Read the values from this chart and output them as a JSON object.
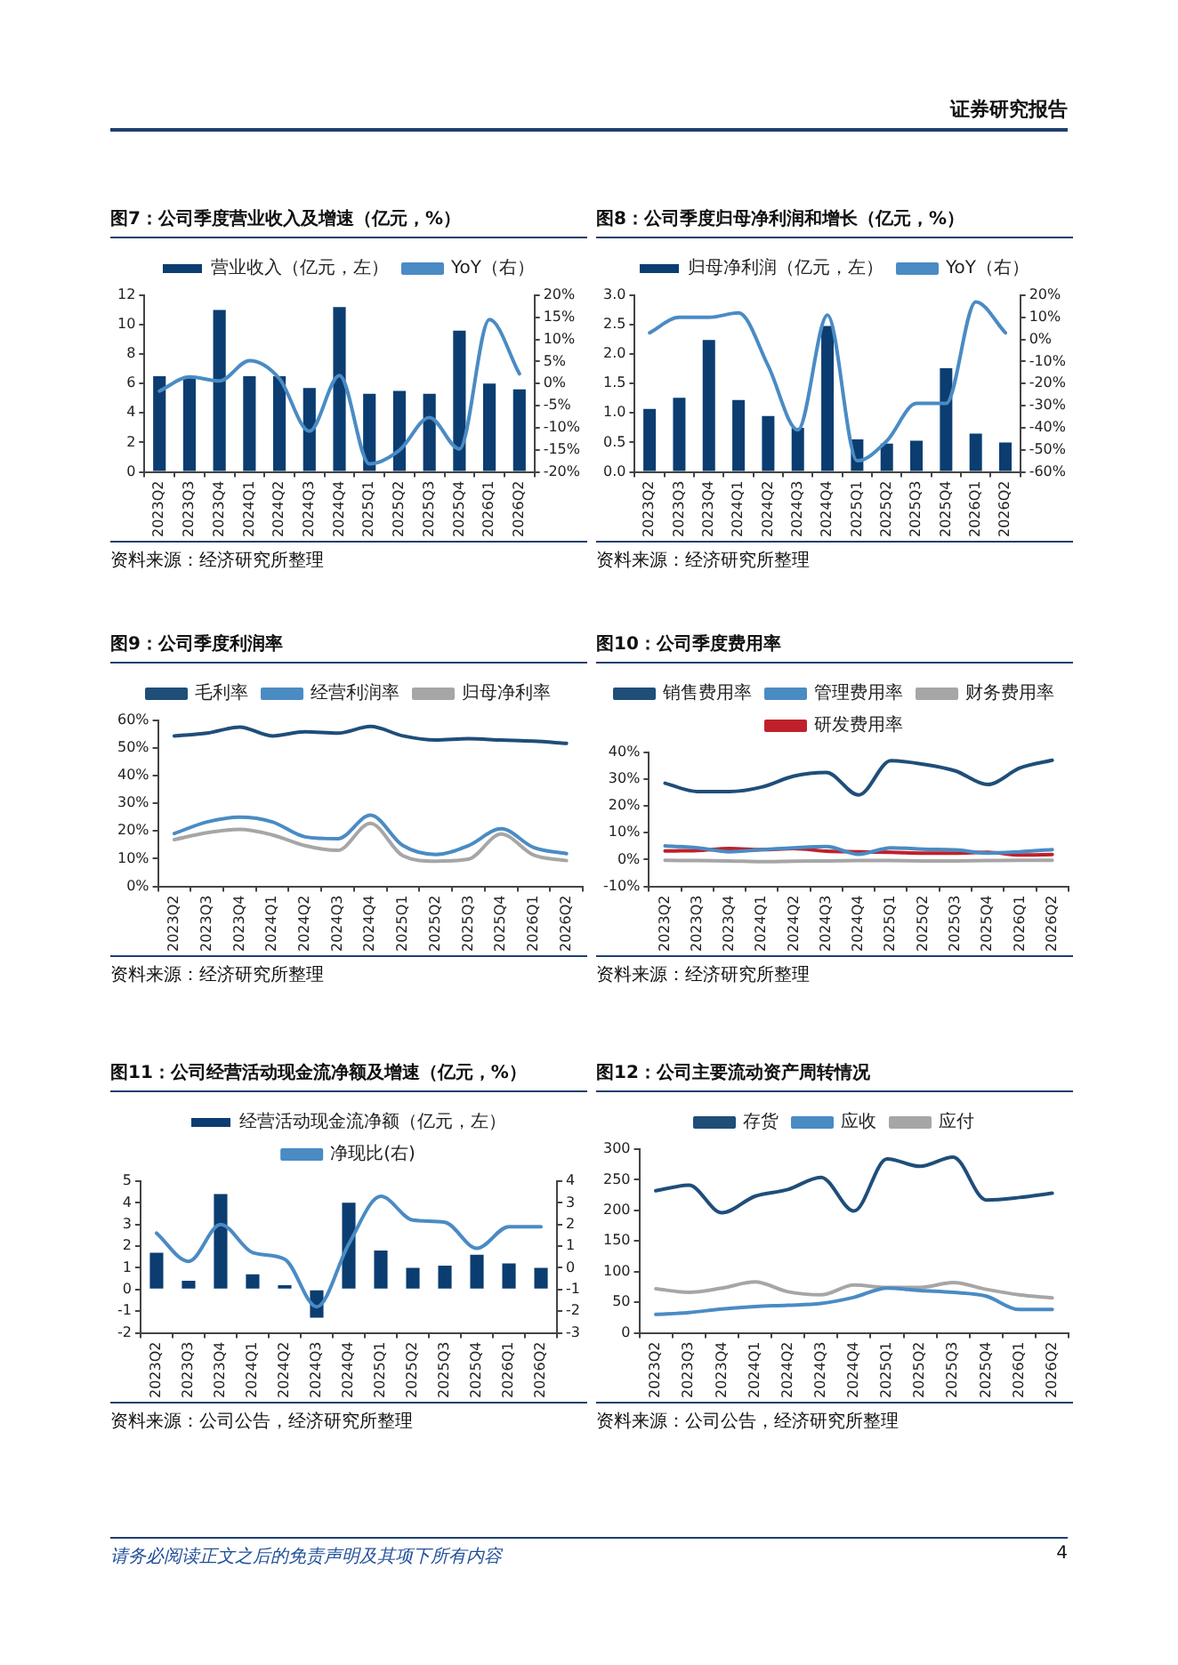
{
  "chart_data": [
    {
      "type": "bar",
      "title": "图7：公司季度营业收入及增速（亿元，%）",
      "categories": [
        "2023Q2",
        "2023Q3",
        "2023Q4",
        "2024Q1",
        "2024Q2",
        "2024Q3",
        "2024Q4",
        "2025Q1",
        "2025Q2",
        "2025Q3",
        "2025Q4",
        "2026Q1",
        "2026Q2"
      ],
      "series": [
        {
          "name": "营业收入（亿元，左）",
          "color": "#0b3d71",
          "values": [
            6.5,
            6.5,
            11.0,
            6.5,
            6.5,
            5.7,
            11.2,
            5.3,
            5.5,
            5.3,
            9.6,
            6.0,
            5.6
          ]
        },
        {
          "name": "YoY（右）",
          "type": "line",
          "axis": "y2",
          "color": "#4a8bc4",
          "values": [
            -1.7,
            1.5,
            0.6,
            5.2,
            1.1,
            -10.8,
            1.8,
            -18.2,
            -15.1,
            -7.7,
            -14.8,
            14.5,
            2.2
          ]
        }
      ],
      "ylim": [
        0,
        12
      ],
      "yticks": [
        0,
        2,
        4,
        6,
        8,
        10,
        12
      ],
      "y2lim": [
        -20,
        20
      ],
      "y2ticks": [
        {
          "value": -20,
          "label": "-20%"
        },
        {
          "value": -15,
          "label": "-15%"
        },
        {
          "value": -10,
          "label": "-10%"
        },
        {
          "value": -5,
          "label": "-5%"
        },
        {
          "value": 0,
          "label": "0%"
        },
        {
          "value": 5,
          "label": "5%"
        },
        {
          "value": 10,
          "label": "10%"
        },
        {
          "value": 15,
          "label": "15%"
        },
        {
          "value": 20,
          "label": "20%"
        }
      ],
      "grid": false,
      "legend": "top",
      "marker": "none",
      "line_style": "solid",
      "annotations": [
        "资料来源：经济研究所整理",
        "证券研究报告"
      ]
    },
    {
      "type": "bar",
      "title": "图8：公司季度归母净利润和增长（亿元，%）",
      "categories": [
        "2023Q2",
        "2023Q3",
        "2023Q4",
        "2024Q1",
        "2024Q2",
        "2024Q3",
        "2024Q4",
        "2025Q1",
        "2025Q2",
        "2025Q3",
        "2025Q4",
        "2026Q1",
        "2026Q2"
      ],
      "series": [
        {
          "name": "归母净利润（亿元，左）",
          "color": "#0b3d71",
          "values": [
            1.07,
            1.26,
            2.24,
            1.22,
            0.95,
            0.75,
            2.48,
            0.55,
            0.48,
            0.53,
            1.76,
            0.65,
            0.5
          ]
        },
        {
          "name": "YoY（右）",
          "type": "line",
          "axis": "y2",
          "color": "#4a8bc4",
          "values": [
            3,
            10,
            10,
            12,
            -12,
            -41,
            11,
            -55,
            -46,
            -29,
            -29,
            17,
            3
          ]
        }
      ],
      "ylim": [
        0,
        3
      ],
      "yticks": [
        {
          "value": 0,
          "label": "0.0"
        },
        {
          "value": 0.5,
          "label": "0.5"
        },
        {
          "value": 1,
          "label": "1.0"
        },
        {
          "value": 1.5,
          "label": "1.5"
        },
        {
          "value": 2,
          "label": "2.0"
        },
        {
          "value": 2.5,
          "label": "2.5"
        },
        {
          "value": 3,
          "label": "3.0"
        }
      ],
      "y2lim": [
        -60,
        20
      ],
      "y2ticks": [
        {
          "value": -60,
          "label": "-60%"
        },
        {
          "value": -50,
          "label": "-50%"
        },
        {
          "value": -40,
          "label": "-40%"
        },
        {
          "value": -30,
          "label": "-30%"
        },
        {
          "value": -20,
          "label": "-20%"
        },
        {
          "value": -10,
          "label": "-10%"
        },
        {
          "value": 0,
          "label": "0%"
        },
        {
          "value": 10,
          "label": "10%"
        },
        {
          "value": 20,
          "label": "20%"
        }
      ],
      "grid": false,
      "legend": "top",
      "marker": "none",
      "line_style": "solid",
      "annotations": [
        "资料来源：经济研究所整理"
      ]
    },
    {
      "type": "line",
      "title": "图9：公司季度利润率",
      "categories": [
        "2023Q2",
        "2023Q3",
        "2023Q4",
        "2024Q1",
        "2024Q2",
        "2024Q3",
        "2024Q4",
        "2025Q1",
        "2025Q2",
        "2025Q3",
        "2025Q4",
        "2026Q1",
        "2026Q2"
      ],
      "series": [
        {
          "name": "毛利率",
          "color": "#1f4e79",
          "values": [
            54.4,
            55.4,
            57.6,
            54.4,
            55.9,
            55.4,
            57.8,
            54.4,
            52.9,
            53.4,
            52.9,
            52.5,
            51.7
          ]
        },
        {
          "name": "经营利润率",
          "color": "#4a8bc4",
          "values": [
            19.1,
            23.3,
            25.0,
            23.3,
            17.9,
            17.2,
            25.7,
            14.7,
            11.5,
            14.7,
            20.8,
            14.0,
            11.8
          ]
        },
        {
          "name": "归母净利率",
          "color": "#a6a6a6",
          "values": [
            16.9,
            19.4,
            20.6,
            18.6,
            14.7,
            13.0,
            22.8,
            11.0,
            9.1,
            9.8,
            18.9,
            11.3,
            9.3
          ]
        }
      ],
      "ylim": [
        0,
        60
      ],
      "yticks": [
        {
          "value": 0,
          "label": "0%"
        },
        {
          "value": 10,
          "label": "10%"
        },
        {
          "value": 20,
          "label": "20%"
        },
        {
          "value": 30,
          "label": "30%"
        },
        {
          "value": 40,
          "label": "40%"
        },
        {
          "value": 50,
          "label": "50%"
        },
        {
          "value": 60,
          "label": "60%"
        }
      ],
      "grid": false,
      "legend": "top",
      "marker": "none",
      "line_style": "solid",
      "annotations": [
        "资料来源：经济研究所整理"
      ]
    },
    {
      "type": "line",
      "title": "图10：公司季度费用率",
      "categories": [
        "2023Q2",
        "2023Q3",
        "2023Q4",
        "2024Q1",
        "2024Q2",
        "2024Q3",
        "2024Q4",
        "2025Q1",
        "2025Q2",
        "2025Q3",
        "2025Q4",
        "2026Q1",
        "2026Q2"
      ],
      "series": [
        {
          "name": "销售费用率",
          "color": "#1f4e79",
          "values": [
            28.5,
            25.4,
            25.4,
            27.1,
            31.2,
            32.5,
            24.1,
            36.9,
            35.6,
            33.1,
            28.0,
            34.2,
            37.1
          ]
        },
        {
          "name": "管理费用率",
          "color": "#4a8bc4",
          "values": [
            5.1,
            4.4,
            2.9,
            3.7,
            4.4,
            4.9,
            2.0,
            4.4,
            3.9,
            3.6,
            2.4,
            2.9,
            3.7
          ]
        },
        {
          "name": "财务费用率",
          "color": "#a6a6a6",
          "values": [
            -0.3,
            -0.4,
            -0.5,
            -0.8,
            -0.6,
            -0.5,
            -0.4,
            -0.4,
            -0.5,
            -0.5,
            -0.4,
            -0.3,
            -0.3
          ]
        },
        {
          "name": "研发费用率",
          "color": "#c0202a",
          "values": [
            3.2,
            3.4,
            4.1,
            3.7,
            4.1,
            3.1,
            2.9,
            2.7,
            2.4,
            2.4,
            2.7,
            1.7,
            1.9
          ]
        }
      ],
      "ylim": [
        -10,
        40
      ],
      "yticks": [
        {
          "value": -10,
          "label": "-10%"
        },
        {
          "value": 0,
          "label": "0%"
        },
        {
          "value": 10,
          "label": "10%"
        },
        {
          "value": 20,
          "label": "20%"
        },
        {
          "value": 30,
          "label": "30%"
        },
        {
          "value": 40,
          "label": "40%"
        }
      ],
      "grid": false,
      "legend": "top",
      "marker": "none",
      "line_style": "solid",
      "annotations": [
        "资料来源：经济研究所整理"
      ]
    },
    {
      "type": "bar",
      "title": "图11：公司经营活动现金流净额及增速（亿元，%）",
      "categories": [
        "2023Q2",
        "2023Q3",
        "2023Q4",
        "2024Q1",
        "2024Q2",
        "2024Q3",
        "2024Q4",
        "2025Q1",
        "2025Q2",
        "2025Q3",
        "2025Q4",
        "2026Q1",
        "2026Q2"
      ],
      "series": [
        {
          "name": "经营活动现金流净额（亿元，左）",
          "color": "#0b3d71",
          "values": [
            1.7,
            0.4,
            4.4,
            0.7,
            0.2,
            -1.3,
            4.0,
            1.8,
            1.0,
            1.1,
            1.6,
            1.2,
            1.0
          ]
        },
        {
          "name": "净现比(右)",
          "type": "line",
          "axis": "y2",
          "color": "#4a8bc4",
          "values": [
            1.6,
            0.3,
            2.0,
            0.7,
            0.4,
            -1.8,
            1.1,
            3.3,
            2.2,
            2.1,
            0.9,
            1.9,
            1.9
          ]
        }
      ],
      "ylim": [
        -2,
        5
      ],
      "yticks": [
        -2,
        -1,
        0,
        1,
        2,
        3,
        4,
        5
      ],
      "y2lim": [
        -3,
        4
      ],
      "y2ticks": [
        -3,
        -2,
        -1,
        0,
        1,
        2,
        3,
        4
      ],
      "grid": false,
      "legend": "top",
      "marker": "none",
      "line_style": "solid",
      "annotations": [
        "资料来源：公司公告，经济研究所整理"
      ]
    },
    {
      "type": "line",
      "title": "图12：公司主要流动资产周转情况",
      "categories": [
        "2023Q2",
        "2023Q3",
        "2023Q4",
        "2024Q1",
        "2024Q2",
        "2024Q3",
        "2024Q4",
        "2025Q1",
        "2025Q2",
        "2025Q3",
        "2025Q4",
        "2026Q1",
        "2026Q2"
      ],
      "series": [
        {
          "name": "存货",
          "color": "#1f4e79",
          "values": [
            232,
            241,
            196,
            223,
            234,
            254,
            199,
            284,
            272,
            287,
            217,
            221,
            228
          ]
        },
        {
          "name": "应收",
          "color": "#4a8bc4",
          "values": [
            30,
            33,
            39,
            43,
            45,
            48,
            58,
            73,
            69,
            66,
            60,
            38,
            38
          ]
        },
        {
          "name": "应付",
          "color": "#a6a6a6",
          "values": [
            72,
            66,
            73,
            83,
            67,
            62,
            78,
            74,
            74,
            82,
            71,
            62,
            57
          ]
        }
      ],
      "ylim": [
        0,
        300
      ],
      "yticks": [
        0,
        50,
        100,
        150,
        200,
        250,
        300
      ],
      "grid": false,
      "legend": "top",
      "marker": "none",
      "line_style": "solid",
      "annotations": [
        "资料来源：公司公告，经济研究所整理",
        "请务必阅读正文之后的免责声明及其项下所有内容",
        "4"
      ]
    }
  ]
}
